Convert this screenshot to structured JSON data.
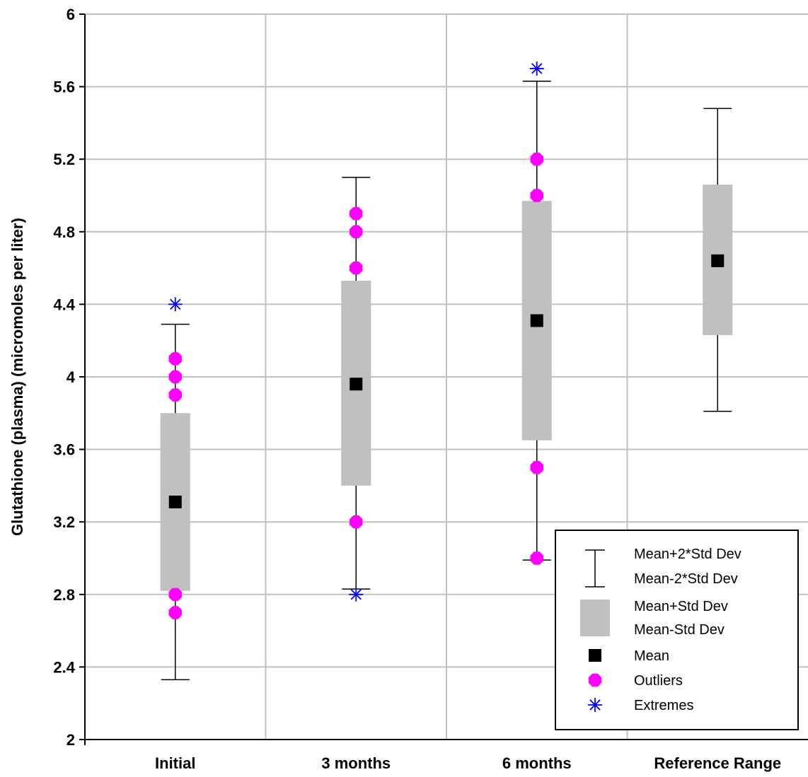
{
  "colors": {
    "grid": "#c0c0c0",
    "box": "#c0c0c0",
    "mean": "#000000",
    "outlier": "#ff00ff",
    "extreme": "#0000ff",
    "whisker": "#000000"
  },
  "chart_data": {
    "type": "box",
    "title": "",
    "xlabel": "",
    "ylabel": "Glutathione (plasma) (micromoles per liter)",
    "ylim": [
      2,
      6
    ],
    "yticks": [
      2,
      2.4,
      2.8,
      3.2,
      3.6,
      4,
      4.4,
      4.8,
      5.2,
      5.6,
      6
    ],
    "ytick_labels": [
      "2",
      "2.4",
      "2.8",
      "3.2",
      "3.6",
      "4",
      "4.4",
      "4.8",
      "5.2",
      "5.6",
      "6"
    ],
    "grid": true,
    "legend_position": "bottom-right",
    "categories": [
      "Initial",
      "3 months",
      "6 months",
      "Reference Range"
    ],
    "groups": [
      {
        "category": "Initial",
        "mean": 3.31,
        "box_low": 2.82,
        "box_high": 3.8,
        "whisker_low": 2.33,
        "whisker_high": 4.29,
        "outliers": [
          4.1,
          4.0,
          3.9,
          2.8,
          2.7
        ],
        "extremes": [
          4.4
        ]
      },
      {
        "category": "3 months",
        "mean": 3.96,
        "box_low": 3.4,
        "box_high": 4.53,
        "whisker_low": 2.83,
        "whisker_high": 5.1,
        "outliers": [
          4.9,
          4.8,
          4.6,
          3.2
        ],
        "extremes": [
          2.8
        ]
      },
      {
        "category": "6 months",
        "mean": 4.31,
        "box_low": 3.65,
        "box_high": 4.97,
        "whisker_low": 2.99,
        "whisker_high": 5.63,
        "outliers": [
          5.2,
          5.0,
          3.5,
          3.0
        ],
        "extremes": [
          5.7
        ]
      },
      {
        "category": "Reference Range",
        "mean": 4.64,
        "box_low": 4.23,
        "box_high": 5.06,
        "whisker_low": 3.81,
        "whisker_high": 5.48,
        "outliers": [],
        "extremes": []
      }
    ],
    "legend": [
      {
        "key": "whisker",
        "lines": [
          "Mean+2*Std Dev",
          "Mean-2*Std Dev"
        ]
      },
      {
        "key": "box",
        "lines": [
          "Mean+Std Dev",
          "Mean-Std Dev"
        ]
      },
      {
        "key": "mean",
        "lines": [
          "Mean"
        ]
      },
      {
        "key": "outlier",
        "lines": [
          "Outliers"
        ]
      },
      {
        "key": "extreme",
        "lines": [
          "Extremes"
        ]
      }
    ]
  }
}
